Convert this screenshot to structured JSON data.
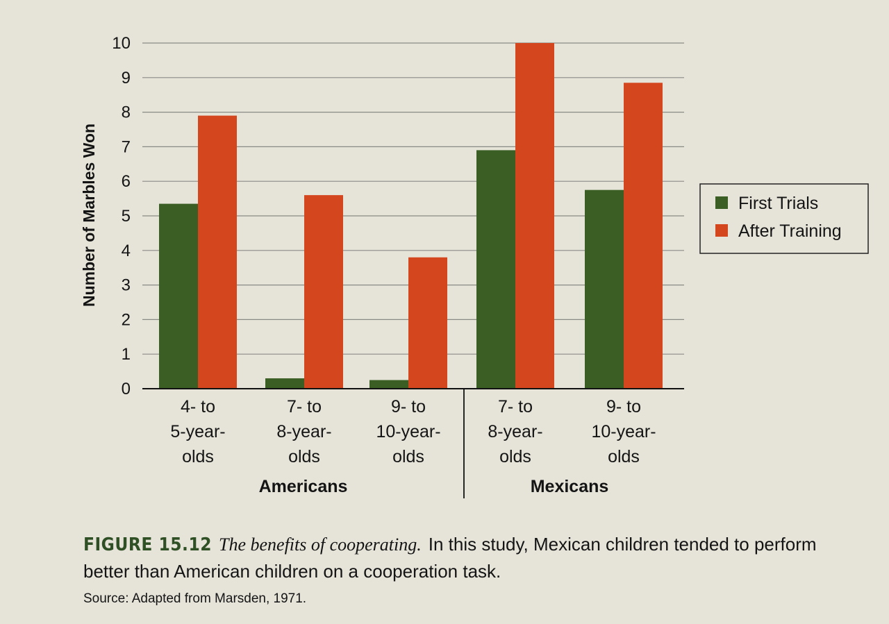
{
  "chart_data": {
    "type": "bar",
    "title": "",
    "ylabel": "Number of Marbles Won",
    "xlabel": "",
    "ylim": [
      0,
      10
    ],
    "yticks": [
      "0",
      "1",
      "2",
      "3",
      "4",
      "5",
      "6",
      "7",
      "8",
      "9",
      "10"
    ],
    "categories": [
      [
        "4- to",
        "5-year-",
        "olds"
      ],
      [
        "7- to",
        "8-year-",
        "olds"
      ],
      [
        "9- to",
        "10-year-",
        "olds"
      ],
      [
        "7- to",
        "8-year-",
        "olds"
      ],
      [
        "9- to",
        "10-year-",
        "olds"
      ]
    ],
    "groups": [
      {
        "name": "Americans",
        "category_indices": [
          0,
          1,
          2
        ]
      },
      {
        "name": "Mexicans",
        "category_indices": [
          3,
          4
        ]
      }
    ],
    "series": [
      {
        "name": "First Trials",
        "color": "#3b5e25",
        "values": [
          5.35,
          0.3,
          0.25,
          6.9,
          5.75
        ]
      },
      {
        "name": "After Training",
        "color": "#d4461e",
        "values": [
          7.9,
          5.6,
          3.8,
          10.0,
          8.85
        ]
      }
    ],
    "legend_position": "right"
  },
  "caption": {
    "figure_label": "FIGURE 15.12",
    "title": "The benefits of cooperating.",
    "text": "In this study, Mexican children tended to perform better than American children on a cooperation task.",
    "source": "Source: Adapted from Marsden, 1971."
  }
}
